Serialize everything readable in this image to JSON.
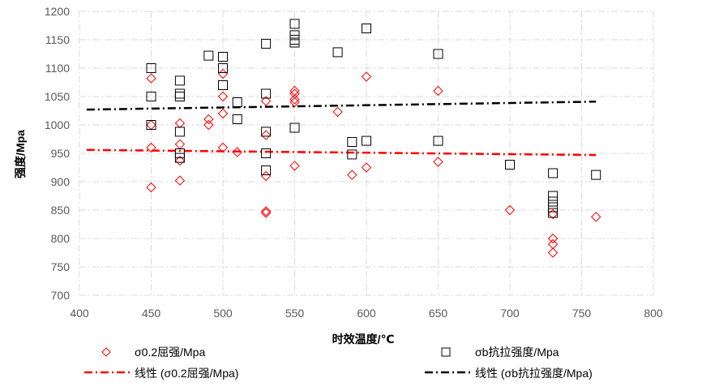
{
  "chart_data": {
    "type": "scatter",
    "xlabel": "时效温度/℃",
    "ylabel": "强度/Mpa",
    "xlim": [
      400,
      800
    ],
    "ylim": [
      700,
      1200
    ],
    "x_ticks": [
      400,
      450,
      500,
      550,
      600,
      650,
      700,
      750,
      800
    ],
    "y_ticks": [
      700,
      750,
      800,
      850,
      900,
      950,
      1000,
      1050,
      1100,
      1150,
      1200
    ],
    "grid": "horizontal and vertical dash-dot, light gray",
    "legend_position": "bottom",
    "series": [
      {
        "name": "σ0.2屈强/Mpa",
        "marker": "diamond",
        "color": "#ff0000",
        "points": [
          [
            450,
            1082
          ],
          [
            450,
            1000
          ],
          [
            450,
            960
          ],
          [
            450,
            890
          ],
          [
            470,
            1003
          ],
          [
            470,
            966
          ],
          [
            470,
            937
          ],
          [
            470,
            902
          ],
          [
            490,
            1010
          ],
          [
            490,
            1000
          ],
          [
            500,
            1090
          ],
          [
            500,
            1050
          ],
          [
            500,
            1020
          ],
          [
            500,
            960
          ],
          [
            510,
            952
          ],
          [
            530,
            1042
          ],
          [
            530,
            982
          ],
          [
            530,
            910
          ],
          [
            530,
            848
          ],
          [
            530,
            845
          ],
          [
            550,
            1060
          ],
          [
            550,
            1055
          ],
          [
            550,
            1045
          ],
          [
            550,
            1040
          ],
          [
            550,
            928
          ],
          [
            580,
            1023
          ],
          [
            590,
            912
          ],
          [
            600,
            1085
          ],
          [
            600,
            925
          ],
          [
            650,
            1060
          ],
          [
            650,
            935
          ],
          [
            700,
            850
          ],
          [
            730,
            843
          ],
          [
            730,
            800
          ],
          [
            730,
            790
          ],
          [
            730,
            775
          ],
          [
            760,
            838
          ]
        ]
      },
      {
        "name": "σb抗拉强度/Mpa",
        "marker": "square",
        "color": "#000000",
        "points": [
          [
            450,
            1100
          ],
          [
            450,
            1050
          ],
          [
            450,
            1000
          ],
          [
            470,
            1078
          ],
          [
            470,
            1055
          ],
          [
            470,
            1050
          ],
          [
            470,
            988
          ],
          [
            470,
            950
          ],
          [
            470,
            942
          ],
          [
            490,
            1122
          ],
          [
            500,
            1120
          ],
          [
            500,
            1100
          ],
          [
            500,
            1070
          ],
          [
            510,
            1040
          ],
          [
            510,
            1010
          ],
          [
            530,
            1143
          ],
          [
            530,
            1055
          ],
          [
            530,
            988
          ],
          [
            530,
            950
          ],
          [
            530,
            920
          ],
          [
            550,
            1178
          ],
          [
            550,
            1158
          ],
          [
            550,
            1150
          ],
          [
            550,
            1145
          ],
          [
            550,
            995
          ],
          [
            580,
            1128
          ],
          [
            590,
            970
          ],
          [
            590,
            948
          ],
          [
            600,
            1170
          ],
          [
            600,
            972
          ],
          [
            650,
            1125
          ],
          [
            650,
            972
          ],
          [
            700,
            930
          ],
          [
            730,
            915
          ],
          [
            730,
            875
          ],
          [
            730,
            865
          ],
          [
            730,
            855
          ],
          [
            730,
            845
          ],
          [
            760,
            912
          ]
        ]
      },
      {
        "name": "线性 (σ0.2屈强/Mpa)",
        "type": "trendline",
        "style": "dash-dot",
        "color": "#ff0000",
        "points": [
          [
            405,
            956
          ],
          [
            760,
            947
          ]
        ]
      },
      {
        "name": "线性 (σb抗拉强度/Mpa)",
        "type": "trendline",
        "style": "dash-dot",
        "color": "#000000",
        "points": [
          [
            405,
            1027
          ],
          [
            760,
            1041
          ]
        ]
      }
    ]
  }
}
